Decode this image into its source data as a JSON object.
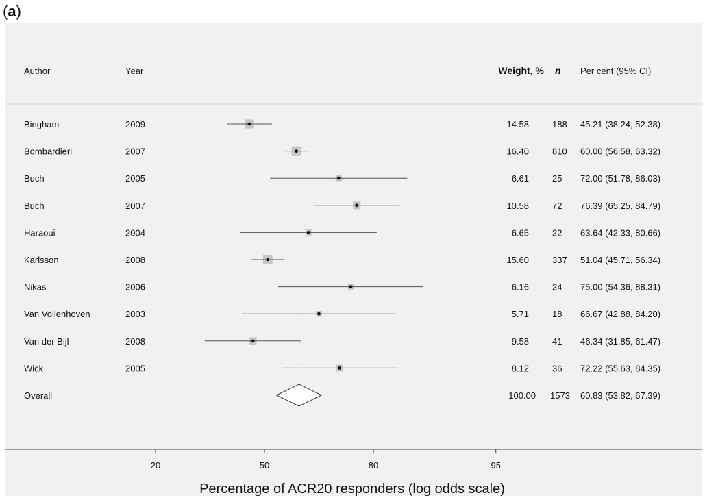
{
  "panel_label": {
    "open": "(",
    "letter": "a",
    "close": ")"
  },
  "chart_data": {
    "type": "forest",
    "headers": {
      "author": "Author",
      "year": "Year",
      "weight": "Weight, %",
      "n": "n",
      "ci": "Per cent (95% CI)"
    },
    "xlabel": "Percentage of ACR20 responders (log odds scale)",
    "scale": "logit",
    "xticks": [
      20,
      50,
      80,
      95
    ],
    "xlim": [
      8,
      99.5
    ],
    "reference_line": 60.83,
    "studies": [
      {
        "author": "Bingham",
        "year": "2009",
        "estimate": 45.21,
        "lower": 38.24,
        "upper": 52.38,
        "weight": "14.58",
        "n": "188",
        "ci_text": "45.21 (38.24, 52.38)"
      },
      {
        "author": "Bombardieri",
        "year": "2007",
        "estimate": 60.0,
        "lower": 56.58,
        "upper": 63.32,
        "weight": "16.40",
        "n": "810",
        "ci_text": "60.00 (56.58, 63.32)"
      },
      {
        "author": "Buch",
        "year": "2005",
        "estimate": 72.0,
        "lower": 51.78,
        "upper": 86.03,
        "weight": "6.61",
        "n": "25",
        "ci_text": "72.00 (51.78, 86.03)"
      },
      {
        "author": "Buch",
        "year": "2007",
        "estimate": 76.39,
        "lower": 65.25,
        "upper": 84.79,
        "weight": "10.58",
        "n": "72",
        "ci_text": "76.39 (65.25, 84.79)"
      },
      {
        "author": "Haraoui",
        "year": "2004",
        "estimate": 63.64,
        "lower": 42.33,
        "upper": 80.66,
        "weight": "6.65",
        "n": "22",
        "ci_text": "63.64 (42.33, 80.66)"
      },
      {
        "author": "Karlsson",
        "year": "2008",
        "estimate": 51.04,
        "lower": 45.71,
        "upper": 56.34,
        "weight": "15.60",
        "n": "337",
        "ci_text": "51.04 (45.71, 56.34)"
      },
      {
        "author": "Nikas",
        "year": "2006",
        "estimate": 75.0,
        "lower": 54.36,
        "upper": 88.31,
        "weight": "6.16",
        "n": "24",
        "ci_text": "75.00 (54.36, 88.31)"
      },
      {
        "author": "Van Vollenhoven",
        "year": "2003",
        "estimate": 66.67,
        "lower": 42.88,
        "upper": 84.2,
        "weight": "5.71",
        "n": "18",
        "ci_text": "66.67 (42.88, 84.20)"
      },
      {
        "author": "Van der Bijl",
        "year": "2008",
        "estimate": 46.34,
        "lower": 31.85,
        "upper": 61.47,
        "weight": "9.58",
        "n": "41",
        "ci_text": "46.34 (31.85, 61.47)"
      },
      {
        "author": "Wick",
        "year": "2005",
        "estimate": 72.22,
        "lower": 55.63,
        "upper": 84.35,
        "weight": "8.12",
        "n": "36",
        "ci_text": "72.22 (55.63, 84.35)"
      }
    ],
    "overall": {
      "label": "Overall",
      "estimate": 60.83,
      "lower": 53.82,
      "upper": 67.39,
      "weight": "100.00",
      "n": "1573",
      "ci_text": "60.83 (53.82, 67.39)"
    },
    "colors": {
      "background": "#f1f1f1",
      "box": "#c6c6c6",
      "line": "#555555",
      "text": "#111111"
    }
  }
}
